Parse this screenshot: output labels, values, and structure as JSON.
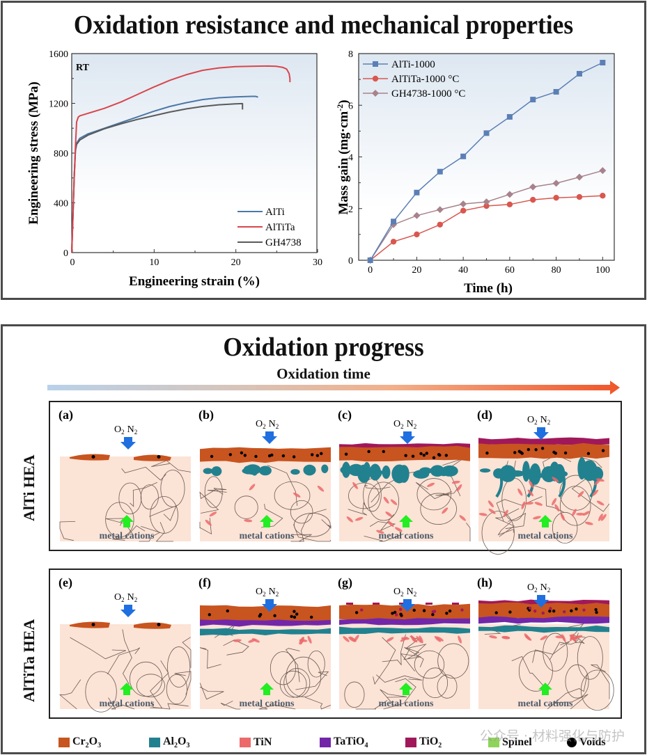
{
  "top_panel": {
    "title": "Oxidation resistance and mechanical properties"
  },
  "chart_data": [
    {
      "type": "line",
      "title": "",
      "annotation": "RT",
      "xlabel": "Engineering strain (%)",
      "ylabel": "Engineering stress (MPa)",
      "xlim": [
        0,
        30
      ],
      "ylim": [
        0,
        1600
      ],
      "xticks": [
        0,
        10,
        20,
        30
      ],
      "yticks": [
        0,
        400,
        800,
        1200,
        1600
      ],
      "grid": false,
      "legend_position": "bottom-right",
      "series": [
        {
          "name": "AlTi",
          "color": "#4a77a8",
          "x": [
            0,
            0.15,
            0.3,
            0.45,
            0.6,
            1,
            2,
            4,
            6,
            8,
            10,
            12,
            14,
            16,
            18,
            20,
            22,
            22.5,
            22.8
          ],
          "y": [
            0,
            300,
            600,
            820,
            880,
            920,
            955,
            1000,
            1045,
            1090,
            1135,
            1175,
            1205,
            1230,
            1245,
            1252,
            1256,
            1256,
            1250
          ]
        },
        {
          "name": "AlTiTa",
          "color": "#d9454c",
          "x": [
            0,
            0.15,
            0.3,
            0.45,
            0.6,
            0.8,
            1,
            2,
            4,
            6,
            8,
            10,
            12,
            14,
            16,
            18,
            20,
            22,
            24,
            25,
            25.8,
            26.3,
            26.6,
            26.7,
            26.7
          ],
          "y": [
            0,
            300,
            600,
            850,
            1050,
            1090,
            1100,
            1120,
            1160,
            1210,
            1270,
            1330,
            1385,
            1430,
            1465,
            1485,
            1495,
            1498,
            1500,
            1498,
            1490,
            1475,
            1440,
            1400,
            1370
          ]
        },
        {
          "name": "GH4738",
          "color": "#5a5a5a",
          "x": [
            0,
            0.15,
            0.3,
            0.45,
            0.6,
            1,
            2,
            4,
            6,
            8,
            10,
            12,
            14,
            16,
            18,
            20,
            20.9,
            20.9
          ],
          "y": [
            0,
            300,
            600,
            820,
            870,
            905,
            945,
            995,
            1035,
            1070,
            1100,
            1130,
            1155,
            1175,
            1188,
            1196,
            1198,
            1150
          ]
        }
      ]
    },
    {
      "type": "line",
      "title": "",
      "xlabel": "Time (h)",
      "ylabel": "Mass gain (mg·cm⁻²)",
      "xlim": [
        -5,
        105
      ],
      "ylim": [
        0,
        8
      ],
      "xticks": [
        0,
        20,
        40,
        60,
        80,
        100
      ],
      "yticks": [
        0,
        2,
        4,
        6,
        8
      ],
      "grid": false,
      "legend_position": "top-left",
      "x": [
        0,
        10,
        20,
        30,
        40,
        50,
        60,
        70,
        80,
        90,
        100
      ],
      "series": [
        {
          "name": "AlTi-1000",
          "color": "#5b7fb5",
          "marker": "square",
          "values": [
            0,
            1.5,
            2.62,
            3.43,
            4.02,
            4.92,
            5.55,
            6.22,
            6.52,
            7.22,
            7.65
          ]
        },
        {
          "name": "AlTiTa-1000 °C",
          "color": "#d9574f",
          "marker": "circle",
          "values": [
            0,
            0.72,
            1.0,
            1.38,
            1.92,
            2.1,
            2.16,
            2.34,
            2.42,
            2.45,
            2.5
          ]
        },
        {
          "name": "GH4738-1000 °C",
          "color": "#a8828c",
          "marker": "diamond",
          "values": [
            0,
            1.38,
            1.73,
            1.96,
            2.18,
            2.26,
            2.55,
            2.84,
            2.98,
            3.22,
            3.47
          ]
        }
      ]
    }
  ],
  "bottom_panel": {
    "title": "Oxidation progress",
    "time_label": "Oxidation time",
    "gas_label_o": "O",
    "gas_label_n": "N",
    "gas_sub": "2",
    "cation_label": "metal cations",
    "rows": [
      {
        "label": "AlTi  HEA",
        "panels": [
          "(a)",
          "(b)",
          "(c)",
          "(d)"
        ]
      },
      {
        "label": "AlTiTa  HEA",
        "panels": [
          "(e)",
          "(f)",
          "(g)",
          "(h)"
        ]
      }
    ],
    "legend": [
      {
        "label": "Cr",
        "sub1": "2",
        "mid": "O",
        "sub2": "3",
        "color": "#c8541f"
      },
      {
        "label": "Al",
        "sub1": "2",
        "mid": "O",
        "sub2": "3",
        "color": "#22818f"
      },
      {
        "label": "TiN",
        "sub1": "",
        "mid": "",
        "sub2": "",
        "color": "#ec6a6a"
      },
      {
        "label": "TaTiO",
        "sub1": "",
        "mid": "",
        "sub2": "4",
        "color": "#7227a8"
      },
      {
        "label": "TiO",
        "sub1": "",
        "mid": "",
        "sub2": "2",
        "color": "#a1185a"
      },
      {
        "label": "Spinel",
        "sub1": "",
        "mid": "",
        "sub2": "",
        "color": "#8fd45a"
      },
      {
        "label": "Voids",
        "sub1": "",
        "mid": "",
        "sub2": "",
        "color": "#000000"
      }
    ],
    "colors": {
      "substrate": "#fbe3d6",
      "grain": "#6d5a52",
      "gas_arrow": "#1f6fe0",
      "cation_arrow": "#22ee22",
      "cation_text": "#4d5b6b"
    },
    "watermark": "公众号 · 材料强化与防护"
  }
}
